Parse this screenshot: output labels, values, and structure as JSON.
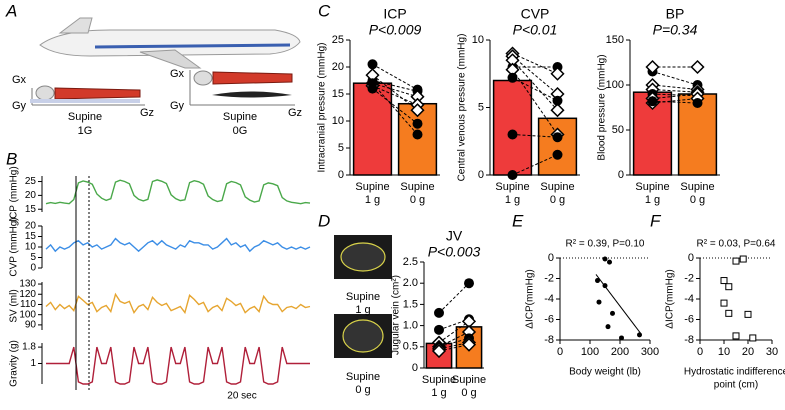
{
  "panel_labels": [
    "A",
    "B",
    "C",
    "D",
    "E",
    "F"
  ],
  "illustration": {
    "left": {
      "top": "Gx",
      "bottom": "Gy",
      "right": "Gz",
      "position": "Supine",
      "gravity": "1G"
    },
    "right": {
      "top": "Gx",
      "bottom": "Gy",
      "right": "Gz",
      "position": "Supine",
      "gravity": "0G"
    }
  },
  "ultrasound": {
    "labels": [
      [
        "Supine",
        "1 g"
      ],
      [
        "Supine",
        "0 g"
      ]
    ]
  },
  "chart_data": [
    {
      "type": "traces",
      "scale_label": "20 sec",
      "series": [
        {
          "name": "ICP (mmHg)",
          "color": "#4aa84a",
          "ylim": [
            14,
            27
          ],
          "yticks": [
            15,
            20,
            25
          ],
          "values": [
            17,
            17.4,
            17.1,
            17.5,
            17.2,
            17.0,
            18.5,
            24.5,
            25.2,
            24.8,
            24.0,
            20.5,
            19.0,
            18.2,
            18.8,
            24.8,
            25.5,
            25.0,
            24.2,
            20.0,
            18.6,
            18.0,
            18.6,
            25.0,
            25.6,
            25.1,
            24.3,
            20.2,
            18.8,
            18.1,
            18.4,
            24.6,
            25.3,
            24.9,
            24.0,
            19.8,
            18.5,
            17.8,
            18.2,
            24.2,
            25.0,
            24.6,
            23.8,
            19.5,
            18.3,
            17.6,
            18.0,
            23.8,
            24.5,
            24.2,
            23.5,
            19.2,
            18.0,
            17.5,
            17.3,
            17.0,
            17.4,
            17.2
          ]
        },
        {
          "name": "CVP (mmHg)",
          "color": "#3c8ee6",
          "ylim": [
            0,
            20
          ],
          "yticks": [
            0,
            5,
            10,
            15,
            20
          ],
          "values": [
            9,
            11,
            8,
            10,
            9,
            10,
            12,
            13,
            11,
            12,
            10,
            11,
            9,
            10,
            11,
            14,
            12,
            11,
            12,
            10,
            8,
            10,
            12,
            13,
            11,
            13,
            11,
            10,
            9,
            11,
            10,
            13,
            12,
            12,
            11,
            11,
            9,
            10,
            12,
            14,
            11,
            12,
            10,
            11,
            8,
            10,
            11,
            13,
            12,
            11,
            12,
            10,
            9,
            10,
            9,
            10,
            9,
            10
          ]
        },
        {
          "name": "SV (ml)",
          "color": "#e6a530",
          "ylim": [
            85,
            132
          ],
          "yticks": [
            90,
            100,
            110,
            120,
            130
          ],
          "values": [
            108,
            112,
            105,
            110,
            106,
            109,
            104,
            118,
            114,
            110,
            112,
            103,
            107,
            109,
            103,
            120,
            113,
            111,
            113,
            102,
            108,
            110,
            105,
            117,
            112,
            109,
            111,
            104,
            106,
            108,
            102,
            119,
            115,
            110,
            112,
            103,
            107,
            109,
            104,
            116,
            113,
            109,
            111,
            102,
            106,
            108,
            103,
            118,
            112,
            110,
            110,
            103,
            107,
            108,
            106,
            110,
            107,
            108
          ]
        },
        {
          "name": "Gravity (g)",
          "color": "#b0203a",
          "ylim": [
            0,
            2
          ],
          "yticks": [
            1,
            1.8
          ],
          "values": [
            1,
            1,
            1,
            1,
            1,
            1,
            1.8,
            0.1,
            0,
            0,
            0.1,
            1.8,
            1,
            1,
            1.8,
            0.1,
            0,
            0,
            0.1,
            1.8,
            1,
            1,
            1.8,
            0.1,
            0,
            0,
            0.1,
            1.8,
            1,
            1,
            1.8,
            0.1,
            0,
            0,
            0.1,
            1.8,
            1,
            1,
            1.8,
            0.1,
            0,
            0,
            0.1,
            1.8,
            1,
            1,
            1.8,
            0.1,
            0,
            0,
            0.1,
            1.8,
            1,
            1,
            1,
            1,
            1,
            1
          ]
        }
      ]
    },
    {
      "type": "paired-bar",
      "title": "ICP",
      "subtitle": "P<0.009",
      "ylabel": "Intracranial pressure (mmHg)",
      "categories": [
        [
          "Supine",
          "1 g"
        ],
        [
          "Supine",
          "0 g"
        ]
      ],
      "values": [
        17,
        13.2
      ],
      "colors": [
        "#ee3b3b",
        "#f57c1f"
      ],
      "ylim": [
        0,
        25
      ],
      "yticks": [
        0,
        5,
        10,
        15,
        20,
        25
      ],
      "subjects": [
        {
          "marker": "circle",
          "values": [
            20.5,
            15.8
          ]
        },
        {
          "marker": "circle",
          "values": [
            17.5,
            15.5
          ]
        },
        {
          "marker": "diamond",
          "values": [
            17,
            14.5
          ]
        },
        {
          "marker": "diamond",
          "values": [
            16.5,
            13
          ]
        },
        {
          "marker": "diamond",
          "values": [
            18.5,
            12
          ]
        },
        {
          "marker": "circle",
          "values": [
            16,
            9.5
          ]
        },
        {
          "marker": "circle",
          "values": [
            17,
            7.5
          ]
        }
      ]
    },
    {
      "type": "paired-bar",
      "title": "CVP",
      "subtitle": "P<0.01",
      "ylabel": "Central venous pressure (mmHg)",
      "categories": [
        [
          "Supine",
          "1 g"
        ],
        [
          "Supine",
          "0 g"
        ]
      ],
      "values": [
        7,
        4.2
      ],
      "colors": [
        "#ee3b3b",
        "#f57c1f"
      ],
      "ylim": [
        0,
        10
      ],
      "yticks": [
        0,
        5,
        10
      ],
      "subjects": [
        {
          "marker": "circle",
          "values": [
            8,
            8
          ]
        },
        {
          "marker": "diamond",
          "values": [
            9,
            7.5
          ]
        },
        {
          "marker": "diamond",
          "values": [
            8.8,
            6
          ]
        },
        {
          "marker": "diamond",
          "values": [
            8.5,
            4.8
          ]
        },
        {
          "marker": "diamond",
          "values": [
            7.8,
            3
          ]
        },
        {
          "marker": "circle",
          "values": [
            7.2,
            5.5
          ]
        },
        {
          "marker": "circle",
          "values": [
            3,
            2.8
          ]
        },
        {
          "marker": "circle",
          "values": [
            0,
            1.5
          ]
        }
      ]
    },
    {
      "type": "paired-bar",
      "title": "BP",
      "subtitle": "P=0.34",
      "ylabel": "Blood pressure (mmHg)",
      "categories": [
        [
          "Supine",
          "1 g"
        ],
        [
          "Supine",
          "0 g"
        ]
      ],
      "values": [
        92,
        90
      ],
      "colors": [
        "#ee3b3b",
        "#f57c1f"
      ],
      "ylim": [
        0,
        150
      ],
      "yticks": [
        0,
        50,
        100,
        150
      ],
      "subjects": [
        {
          "marker": "circle",
          "values": [
            115,
            100
          ]
        },
        {
          "marker": "diamond",
          "values": [
            120,
            120
          ]
        },
        {
          "marker": "diamond",
          "values": [
            100,
            95
          ]
        },
        {
          "marker": "diamond",
          "values": [
            95,
            92
          ]
        },
        {
          "marker": "circle",
          "values": [
            90,
            88
          ]
        },
        {
          "marker": "diamond",
          "values": [
            85,
            90
          ]
        },
        {
          "marker": "diamond",
          "values": [
            80,
            85
          ]
        },
        {
          "marker": "circle",
          "values": [
            82,
            80
          ]
        }
      ]
    },
    {
      "type": "paired-bar",
      "title": "JV",
      "subtitle": "P<0.003",
      "ylabel": "Jugular vein (cm²)",
      "categories": [
        [
          "Supine",
          "1 g"
        ],
        [
          "Supine",
          "0 g"
        ]
      ],
      "values": [
        0.58,
        0.97
      ],
      "colors": [
        "#ee3b3b",
        "#f57c1f"
      ],
      "ylim": [
        0,
        2.5
      ],
      "yticks": [
        0,
        0.5,
        {
          "value": 1,
          "label": "1.0"
        },
        1.5,
        {
          "value": 2,
          "label": "2.0"
        },
        2.5
      ],
      "subjects": [
        {
          "marker": "circle",
          "values": [
            1.3,
            2.0
          ]
        },
        {
          "marker": "circle",
          "values": [
            0.9,
            1.15
          ]
        },
        {
          "marker": "diamond",
          "values": [
            0.6,
            1.1
          ]
        },
        {
          "marker": "diamond",
          "values": [
            0.5,
            0.85
          ]
        },
        {
          "marker": "circle",
          "values": [
            0.5,
            0.7
          ]
        },
        {
          "marker": "diamond",
          "values": [
            0.45,
            0.6
          ]
        },
        {
          "marker": "diamond",
          "values": [
            0.4,
            0.55
          ]
        }
      ]
    },
    {
      "type": "scatter",
      "title": "R² = 0.39, P=0.10",
      "xlabel": [
        "Body weight (lb)"
      ],
      "ylabel": "ΔICP(mmHg)",
      "marker": "circle",
      "color": "#000000",
      "zero_line": true,
      "xlim": [
        0,
        300
      ],
      "xticks": [
        0,
        100,
        200,
        300
      ],
      "ylim": [
        -8,
        0
      ],
      "yticks": [
        0,
        -2,
        -4,
        -6,
        -8
      ],
      "x": [
        150,
        165,
        125,
        150,
        130,
        175,
        160,
        205,
        265
      ],
      "values": [
        -0.1,
        -0.4,
        -2.2,
        -2.7,
        -4.3,
        -5.4,
        -6.7,
        -7.8,
        -7.5
      ],
      "trendline": {
        "x": [
          120,
          270
        ],
        "values": [
          -1.6,
          -7.4
        ]
      }
    },
    {
      "type": "scatter",
      "title": "R² = 0.03, P=0.64",
      "xlabel": [
        "Hydrostatic indifference",
        "point (cm)"
      ],
      "ylabel": "ΔICP(mmHg)",
      "marker": "square",
      "color": "#000000",
      "zero_line": true,
      "xlim": [
        0,
        30
      ],
      "xticks": [
        0,
        10,
        20,
        30
      ],
      "ylim": [
        -8,
        0
      ],
      "yticks": [
        0,
        -2,
        -4,
        -6,
        -8
      ],
      "x": [
        15,
        18,
        10,
        12,
        10,
        12,
        20,
        15,
        22
      ],
      "values": [
        -0.3,
        -0.1,
        -2.2,
        -2.8,
        -4.4,
        -5.4,
        -5.5,
        -7.6,
        -7.8
      ]
    }
  ]
}
